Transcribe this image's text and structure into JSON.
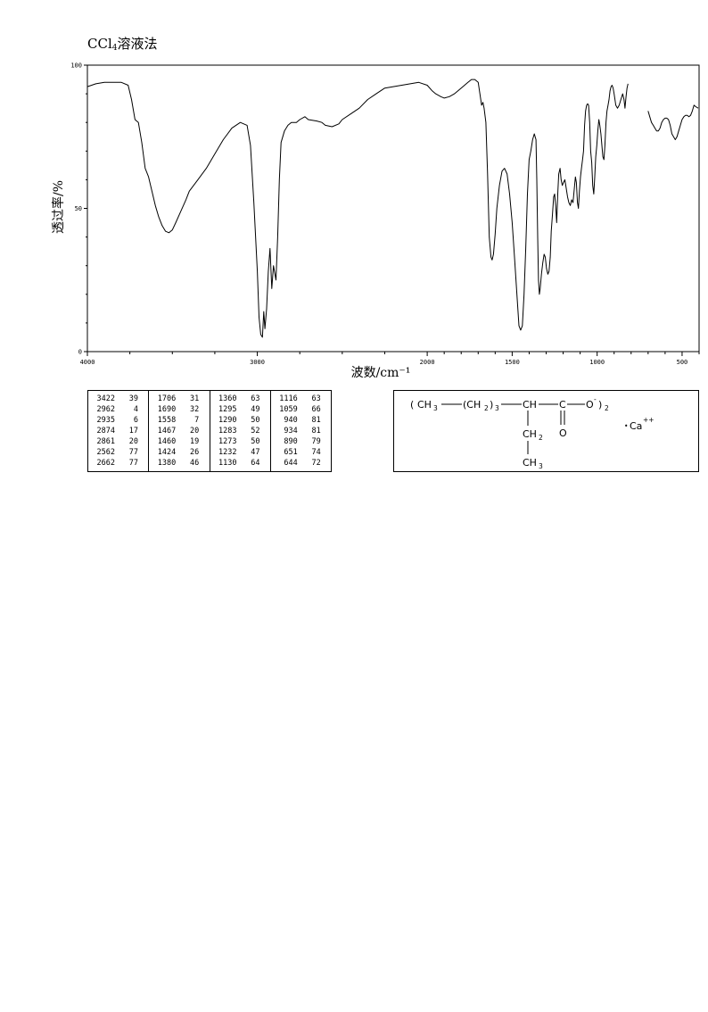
{
  "title": {
    "prefix": "CCl",
    "subscript": "4",
    "suffix": "溶液法"
  },
  "chart_data": {
    "type": "line",
    "title": "CCl4溶液法",
    "xlabel": "波数/cm⁻¹",
    "ylabel": "透过率/%",
    "xlim": [
      4000,
      400
    ],
    "ylim": [
      0,
      100
    ],
    "x_ticks": [
      "4000",
      "3000",
      "2000",
      "1500",
      "1000",
      "500"
    ],
    "y_ticks": [
      "0",
      "50",
      "100"
    ],
    "grid": false,
    "series": [
      {
        "segments": [
          [
            [
              4000,
              92.5
            ],
            [
              3950,
              93.5
            ],
            [
              3900,
              94
            ],
            [
              3800,
              94
            ],
            [
              3760,
              93
            ],
            [
              3740,
              88
            ],
            [
              3720,
              81
            ],
            [
              3700,
              80
            ],
            [
              3680,
              73
            ],
            [
              3660,
              64
            ],
            [
              3640,
              61
            ],
            [
              3620,
              56
            ],
            [
              3600,
              51
            ],
            [
              3580,
              47
            ],
            [
              3560,
              44
            ],
            [
              3540,
              42
            ],
            [
              3520,
              41.5
            ],
            [
              3500,
              42.5
            ],
            [
              3480,
              45
            ],
            [
              3450,
              49
            ],
            [
              3420,
              53
            ],
            [
              3400,
              56
            ],
            [
              3350,
              60
            ],
            [
              3300,
              64
            ],
            [
              3250,
              69
            ],
            [
              3200,
              74
            ],
            [
              3150,
              78
            ],
            [
              3100,
              80
            ],
            [
              3060,
              79
            ],
            [
              3040,
              72
            ],
            [
              3020,
              52
            ],
            [
              3000,
              28
            ],
            [
              2990,
              12
            ],
            [
              2980,
              6
            ],
            [
              2970,
              5
            ],
            [
              2962,
              14
            ],
            [
              2955,
              8
            ],
            [
              2945,
              15
            ],
            [
              2935,
              28
            ],
            [
              2925,
              36
            ],
            [
              2915,
              22
            ],
            [
              2905,
              30
            ],
            [
              2890,
              25
            ],
            [
              2880,
              40
            ],
            [
              2870,
              60
            ],
            [
              2860,
              73
            ],
            [
              2840,
              77
            ],
            [
              2820,
              79
            ],
            [
              2800,
              80
            ],
            [
              2770,
              80
            ],
            [
              2750,
              81
            ],
            [
              2720,
              82
            ],
            [
              2700,
              81
            ],
            [
              2650,
              80.5
            ],
            [
              2620,
              80
            ],
            [
              2600,
              79
            ],
            [
              2560,
              78.5
            ],
            [
              2520,
              79.5
            ],
            [
              2500,
              81
            ],
            [
              2450,
              83
            ],
            [
              2400,
              85
            ],
            [
              2350,
              88
            ],
            [
              2300,
              90
            ],
            [
              2250,
              92
            ],
            [
              2200,
              92.5
            ],
            [
              2100,
              93.5
            ],
            [
              2050,
              94
            ],
            [
              2000,
              93
            ],
            [
              1970,
              91
            ],
            [
              1950,
              90
            ],
            [
              1920,
              89
            ],
            [
              1900,
              88.5
            ],
            [
              1870,
              89
            ],
            [
              1840,
              90
            ],
            [
              1800,
              92
            ],
            [
              1780,
              93
            ],
            [
              1760,
              94
            ],
            [
              1740,
              95
            ],
            [
              1720,
              95
            ],
            [
              1700,
              94
            ],
            [
              1690,
              90
            ],
            [
              1680,
              86
            ],
            [
              1672,
              87
            ],
            [
              1665,
              85
            ],
            [
              1655,
              80
            ],
            [
              1645,
              62
            ],
            [
              1635,
              40
            ],
            [
              1625,
              33
            ],
            [
              1618,
              32
            ],
            [
              1610,
              34
            ],
            [
              1600,
              41
            ],
            [
              1590,
              50
            ],
            [
              1575,
              58
            ],
            [
              1560,
              63
            ],
            [
              1545,
              64
            ],
            [
              1530,
              62
            ],
            [
              1515,
              55
            ],
            [
              1500,
              45
            ],
            [
              1485,
              32
            ],
            [
              1470,
              18
            ],
            [
              1460,
              9
            ],
            [
              1450,
              7.5
            ],
            [
              1440,
              9
            ],
            [
              1430,
              20
            ],
            [
              1420,
              36
            ],
            [
              1410,
              55
            ],
            [
              1400,
              67
            ],
            [
              1390,
              70
            ],
            [
              1380,
              74
            ],
            [
              1370,
              76
            ],
            [
              1360,
              74
            ],
            [
              1355,
              60
            ],
            [
              1350,
              40
            ],
            [
              1345,
              25
            ],
            [
              1340,
              20
            ],
            [
              1335,
              22
            ],
            [
              1328,
              27
            ],
            [
              1320,
              31
            ],
            [
              1312,
              34
            ],
            [
              1305,
              33
            ],
            [
              1298,
              29
            ],
            [
              1290,
              27
            ],
            [
              1283,
              28
            ],
            [
              1276,
              33
            ],
            [
              1270,
              42
            ],
            [
              1263,
              48
            ],
            [
              1256,
              54
            ],
            [
              1250,
              55
            ],
            [
              1244,
              51
            ],
            [
              1238,
              45
            ],
            [
              1232,
              55
            ],
            [
              1226,
              62
            ],
            [
              1218,
              64
            ],
            [
              1212,
              60
            ],
            [
              1205,
              58
            ],
            [
              1198,
              59
            ],
            [
              1190,
              60
            ],
            [
              1182,
              57
            ],
            [
              1174,
              54
            ],
            [
              1166,
              52
            ],
            [
              1158,
              51
            ],
            [
              1150,
              53
            ],
            [
              1142,
              52
            ],
            [
              1134,
              57
            ],
            [
              1128,
              61
            ],
            [
              1122,
              59
            ],
            [
              1116,
              52
            ],
            [
              1110,
              50
            ],
            [
              1104,
              56
            ],
            [
              1098,
              61
            ],
            [
              1092,
              64
            ],
            [
              1086,
              67
            ],
            [
              1080,
              70
            ],
            [
              1074,
              79
            ],
            [
              1068,
              84
            ],
            [
              1062,
              86
            ],
            [
              1056,
              86.5
            ],
            [
              1050,
              86
            ],
            [
              1044,
              80
            ],
            [
              1038,
              70
            ],
            [
              1032,
              66
            ],
            [
              1026,
              58
            ],
            [
              1020,
              55
            ],
            [
              1014,
              61
            ],
            [
              1008,
              68
            ],
            [
              1002,
              72
            ],
            [
              996,
              77
            ],
            [
              990,
              81
            ],
            [
              984,
              79
            ],
            [
              978,
              76
            ],
            [
              972,
              72
            ],
            [
              966,
              68
            ],
            [
              960,
              67
            ],
            [
              954,
              72
            ],
            [
              948,
              80
            ],
            [
              942,
              84
            ],
            [
              936,
              86
            ],
            [
              930,
              88
            ],
            [
              924,
              91
            ],
            [
              918,
              92.5
            ],
            [
              912,
              93
            ],
            [
              906,
              92
            ],
            [
              900,
              90
            ],
            [
              890,
              86
            ],
            [
              880,
              85
            ],
            [
              870,
              86
            ],
            [
              860,
              88
            ],
            [
              850,
              90
            ],
            [
              842,
              88
            ],
            [
              836,
              85
            ],
            [
              830,
              89
            ],
            [
              824,
              92
            ],
            [
              818,
              93.5
            ]
          ],
          [
            [
              700,
              84
            ],
            [
              690,
              82
            ],
            [
              680,
              80
            ],
            [
              670,
              79
            ],
            [
              660,
              78
            ],
            [
              650,
              77
            ],
            [
              640,
              77
            ],
            [
              630,
              78
            ],
            [
              620,
              80
            ],
            [
              610,
              81
            ],
            [
              600,
              81.5
            ],
            [
              590,
              81.5
            ],
            [
              580,
              81
            ],
            [
              570,
              79
            ],
            [
              560,
              76
            ],
            [
              550,
              75
            ],
            [
              540,
              74
            ],
            [
              530,
              75
            ],
            [
              520,
              77
            ],
            [
              510,
              79
            ],
            [
              500,
              81
            ],
            [
              490,
              82
            ],
            [
              480,
              82.5
            ],
            [
              470,
              82.5
            ],
            [
              460,
              82
            ],
            [
              450,
              82.5
            ],
            [
              440,
              84
            ],
            [
              430,
              86
            ],
            [
              420,
              85.5
            ],
            [
              405,
              85
            ]
          ]
        ]
      }
    ]
  },
  "peak_table": {
    "columns": [
      [
        [
          "3422",
          "39"
        ],
        [
          "2962",
          "4"
        ],
        [
          "2935",
          "6"
        ],
        [
          "2874",
          "17"
        ],
        [
          "2861",
          "20"
        ],
        [
          "2562",
          "77"
        ],
        [
          "2662",
          "77"
        ]
      ],
      [
        [
          "1706",
          "31"
        ],
        [
          "1690",
          "32"
        ],
        [
          "1558",
          "7"
        ],
        [
          "1467",
          "20"
        ],
        [
          "1460",
          "19"
        ],
        [
          "1424",
          "26"
        ],
        [
          "1380",
          "46"
        ]
      ],
      [
        [
          "1360",
          "63"
        ],
        [
          "1295",
          "49"
        ],
        [
          "1290",
          "50"
        ],
        [
          "1283",
          "52"
        ],
        [
          "1273",
          "50"
        ],
        [
          "1232",
          "47"
        ],
        [
          "1130",
          "64"
        ]
      ],
      [
        [
          "1116",
          "63"
        ],
        [
          "1059",
          "66"
        ],
        [
          "940",
          "81"
        ],
        [
          "934",
          "81"
        ],
        [
          "890",
          "79"
        ],
        [
          "651",
          "74"
        ],
        [
          "644",
          "72"
        ]
      ]
    ]
  },
  "structure": {
    "paren_open": "(",
    "ch3_left": "CH",
    "ch3_left_sub": "3",
    "ch2_group": "(CH",
    "ch2_group_sub": "2",
    "ch2_group_close": ")",
    "ch2_group_count": "3",
    "ch": "CH",
    "carbonyl_c": "C",
    "o_minus": "O",
    "o_minus_sup": "-",
    "paren_close": ")",
    "multiplier": "2",
    "double_o": "O",
    "ch2_branch": "CH",
    "ch2_branch_sub": "2",
    "ch3_branch": "CH",
    "ch3_branch_sub": "3",
    "cation_dot": "•",
    "cation": "Ca",
    "cation_charge": "++"
  }
}
